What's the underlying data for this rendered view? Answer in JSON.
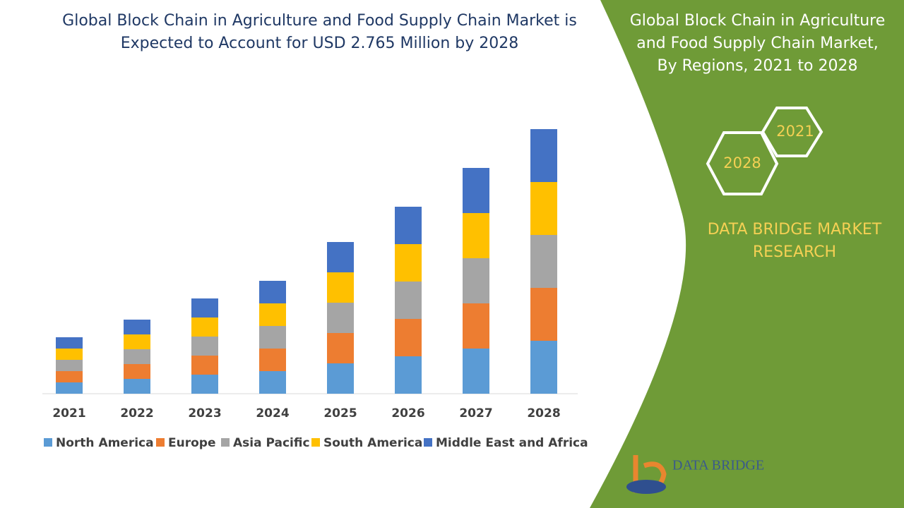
{
  "chart_data": {
    "type": "stacked-bar",
    "title": "Global Block Chain in Agriculture and Food Supply Chain Market is Expected to Account for USD 2.765 Million by 2028",
    "categories": [
      "2021",
      "2022",
      "2023",
      "2024",
      "2025",
      "2026",
      "2027",
      "2028"
    ],
    "series": [
      {
        "name": "North America",
        "color": "#5b9bd5",
        "values": [
          16,
          21,
          27,
          32,
          43,
          53,
          64,
          75
        ]
      },
      {
        "name": "Europe",
        "color": "#ed7d31",
        "values": [
          16,
          21,
          27,
          32,
          43,
          53,
          64,
          75
        ]
      },
      {
        "name": "Asia Pacific",
        "color": "#a5a5a5",
        "values": [
          16,
          21,
          27,
          32,
          43,
          53,
          64,
          75
        ]
      },
      {
        "name": "South America",
        "color": "#ffc000",
        "values": [
          16,
          21,
          27,
          32,
          43,
          53,
          64,
          75
        ]
      },
      {
        "name": "Middle East and Africa",
        "color": "#4472c4",
        "values": [
          16,
          21,
          27,
          32,
          43,
          53,
          64,
          75
        ]
      }
    ]
  },
  "panel": {
    "title": "Global Block Chain in Agriculture and Food Supply Chain Market, By Regions, 2021 to 2028",
    "hexagons": [
      "2021",
      "2028"
    ],
    "brand": "DATA BRIDGE MARKET RESEARCH",
    "logo": "DATA BRIDGE"
  }
}
